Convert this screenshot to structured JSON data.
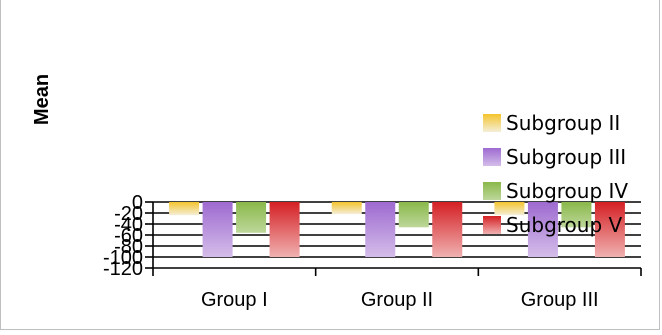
{
  "chart_data": {
    "type": "bar",
    "title": "",
    "xlabel": "",
    "ylabel": "Mean",
    "categories": [
      "Group I",
      "Group II",
      "Group III"
    ],
    "series": [
      {
        "name": "Subgroup II",
        "values": [
          -24,
          -22,
          -24
        ],
        "color": "#f5c42c",
        "fade": "#f4eed8"
      },
      {
        "name": "Subgroup III",
        "values": [
          -100,
          -100,
          -100
        ],
        "color": "#9e6ad0",
        "fade": "#d4bde9"
      },
      {
        "name": "Subgroup IV",
        "values": [
          -56,
          -46,
          -46
        ],
        "color": "#8ab84a",
        "fade": "#bdd79a"
      },
      {
        "name": "Subgroup V",
        "values": [
          -100,
          -100,
          -100
        ],
        "color": "#d42024",
        "fade": "#f0b1b1"
      }
    ],
    "ylim": [
      -120,
      0
    ],
    "yticks": [
      0,
      -20,
      -40,
      -60,
      -80,
      -100,
      -120
    ],
    "ytick_labels": [
      "0",
      "-20",
      "-40",
      "-60",
      "-80",
      "-100",
      "-120"
    ],
    "grid": true,
    "legend_position": "right"
  }
}
